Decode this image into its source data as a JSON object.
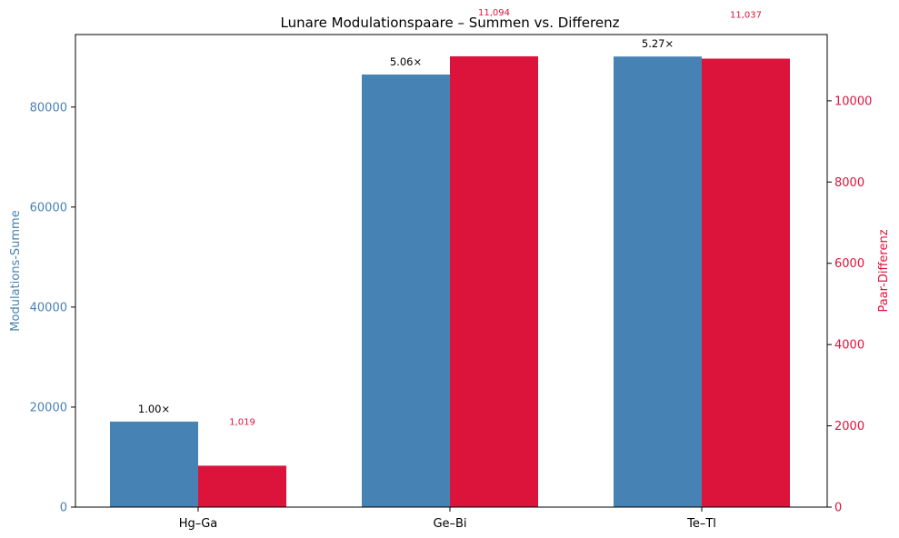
{
  "chart_data": {
    "type": "bar",
    "title": "Lunare Modulationspaare – Summen vs. Differenz",
    "categories": [
      "Hg–Ga",
      "Ge–Bi",
      "Te–Tl"
    ],
    "xlabel": "",
    "y_left": {
      "label": "Modulations-Summe",
      "ylim": [
        0,
        94500
      ],
      "ticks": [
        0,
        20000,
        40000,
        60000,
        80000
      ],
      "tick_labels": [
        "0",
        "20000",
        "40000",
        "60000",
        "80000"
      ]
    },
    "y_right": {
      "label": "Paar-Differenz",
      "ylim": [
        0,
        11630
      ],
      "ticks": [
        0,
        2000,
        4000,
        6000,
        8000,
        10000
      ],
      "tick_labels": [
        "0",
        "2000",
        "4000",
        "6000",
        "8000",
        "10000"
      ]
    },
    "series": [
      {
        "axis": "left",
        "color": "#4682b4",
        "values": [
          17100,
          86500,
          90100
        ]
      },
      {
        "axis": "right",
        "color": "#dc143c",
        "values": [
          1019,
          11094,
          11037
        ]
      }
    ],
    "ratio_labels": [
      "1.00×",
      "5.06×",
      "5.27×"
    ],
    "diff_labels": [
      "1,019",
      "11,094",
      "11,037"
    ],
    "grid": false,
    "legend": "none"
  },
  "colors": {
    "left_axis": "#4682b4",
    "right_axis": "#dc143c",
    "axes": "#000000"
  }
}
